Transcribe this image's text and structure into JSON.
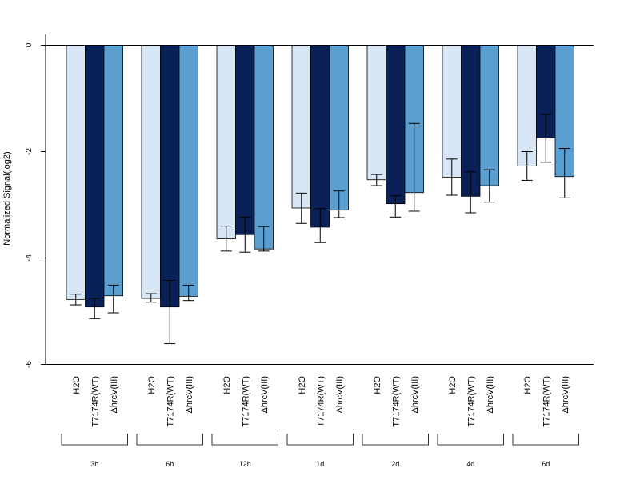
{
  "chart_data": {
    "type": "bar",
    "title": "",
    "xlabel": "",
    "ylabel": "Normalized Signal(log2)",
    "ylim": [
      -6,
      0.2
    ],
    "yticks": [
      "0",
      "-2",
      "-4",
      "-6"
    ],
    "grid": false,
    "groups": [
      "3h",
      "6h",
      "12h",
      "1d",
      "2d",
      "4d",
      "6d"
    ],
    "bar_labels": [
      "H2O",
      "T7174R(WT)",
      "ΔhrcV(III)"
    ],
    "colors": [
      "#d6e6f5",
      "#0a2158",
      "#5a9fcf"
    ],
    "series": [
      {
        "values": [
          -4.78,
          -4.76,
          -3.64,
          -3.06,
          -2.53,
          -2.48,
          -2.27
        ],
        "err_low": [
          -4.88,
          -4.83,
          -3.87,
          -3.35,
          -2.64,
          -2.82,
          -2.54
        ],
        "err_high": [
          -4.68,
          -4.67,
          -3.4,
          -2.78,
          -2.43,
          -2.14,
          -2.0
        ]
      },
      {
        "values": [
          -4.92,
          -4.92,
          -3.56,
          -3.42,
          -2.98,
          -2.84,
          -1.74
        ],
        "err_low": [
          -5.14,
          -5.61,
          -3.89,
          -3.71,
          -3.23,
          -3.15,
          -2.2
        ],
        "err_high": [
          -4.76,
          -4.42,
          -3.23,
          -3.07,
          -2.83,
          -2.38,
          -1.3
        ]
      },
      {
        "values": [
          -4.71,
          -4.72,
          -3.83,
          -3.1,
          -2.77,
          -2.64,
          -2.47
        ],
        "err_low": [
          -5.03,
          -4.8,
          -3.87,
          -3.24,
          -3.12,
          -2.95,
          -2.87
        ],
        "err_high": [
          -4.51,
          -4.51,
          -3.41,
          -2.74,
          -1.47,
          -2.34,
          -1.94
        ]
      }
    ]
  }
}
